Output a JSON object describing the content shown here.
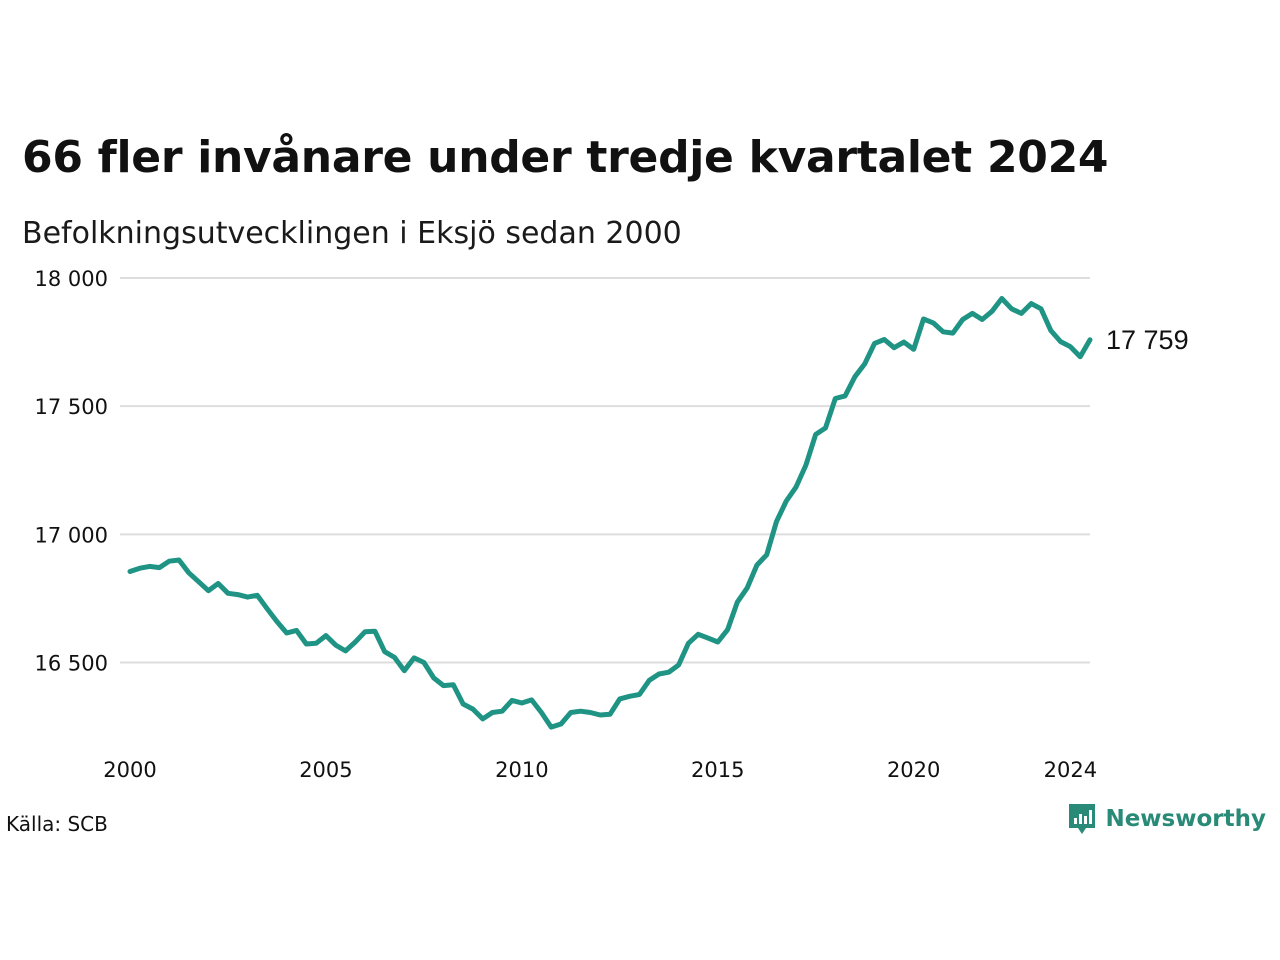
{
  "header": {
    "title": "66 fler invånare under tredje kvartalet 2024",
    "subtitle": "Befolkningsutvecklingen i Eksjö sedan 2000"
  },
  "footer": {
    "source": "Källa: SCB",
    "brand": "Newsworthy",
    "brand_icon": "newsworthy-logo-icon"
  },
  "colors": {
    "line": "#1f9484",
    "grid": "#dddddd",
    "brand": "#2a8a78"
  },
  "chart_data": {
    "type": "line",
    "title": "66 fler invånare under tredje kvartalet 2024",
    "subtitle": "Befolkningsutvecklingen i Eksjö sedan 2000",
    "xlabel": "",
    "ylabel": "",
    "x_ticks": [
      2000,
      2005,
      2010,
      2015,
      2020,
      2024
    ],
    "x_tick_labels": [
      "2000",
      "2005",
      "2010",
      "2015",
      "2020",
      "2024"
    ],
    "y_ticks": [
      16500,
      17000,
      17500,
      18000
    ],
    "y_tick_labels": [
      "16 500",
      "17 000",
      "17 500",
      "18 000"
    ],
    "xlim": [
      2000,
      2024.5
    ],
    "ylim": [
      16260,
      18000
    ],
    "grid": "horizontal",
    "end_label": "17 759",
    "series": [
      {
        "x": [
          2000.0,
          2000.25,
          2000.5,
          2000.75,
          2001.0,
          2001.25,
          2001.5,
          2001.75,
          2002.0,
          2002.25,
          2002.5,
          2002.75,
          2003.0,
          2003.25,
          2003.5,
          2003.75,
          2004.0,
          2004.25,
          2004.5,
          2004.75,
          2005.0,
          2005.25,
          2005.5,
          2005.75,
          2006.0,
          2006.25,
          2006.5,
          2006.75,
          2007.0,
          2007.25,
          2007.5,
          2007.75,
          2008.0,
          2008.25,
          2008.5,
          2008.75,
          2009.0,
          2009.25,
          2009.5,
          2009.75,
          2010.0,
          2010.25,
          2010.5,
          2010.75,
          2011.0,
          2011.25,
          2011.5,
          2011.75,
          2012.0,
          2012.25,
          2012.5,
          2012.75,
          2013.0,
          2013.25,
          2013.5,
          2013.75,
          2014.0,
          2014.25,
          2014.5,
          2014.75,
          2015.0,
          2015.25,
          2015.5,
          2015.75,
          2016.0,
          2016.25,
          2016.5,
          2016.75,
          2017.0,
          2017.25,
          2017.5,
          2017.75,
          2018.0,
          2018.25,
          2018.5,
          2018.75,
          2019.0,
          2019.25,
          2019.5,
          2019.75,
          2020.0,
          2020.25,
          2020.5,
          2020.75,
          2021.0,
          2021.25,
          2021.5,
          2021.75,
          2022.0,
          2022.25,
          2022.5,
          2022.75,
          2023.0,
          2023.25,
          2023.5,
          2023.75,
          2024.0,
          2024.25,
          2024.5
        ],
        "values": [
          16855,
          16868,
          16875,
          16870,
          16895,
          16900,
          16850,
          16815,
          16780,
          16808,
          16770,
          16765,
          16755,
          16762,
          16710,
          16660,
          16615,
          16625,
          16572,
          16575,
          16605,
          16568,
          16545,
          16580,
          16620,
          16622,
          16542,
          16520,
          16468,
          16518,
          16500,
          16440,
          16410,
          16413,
          16338,
          16318,
          16280,
          16305,
          16310,
          16352,
          16342,
          16354,
          16305,
          16248,
          16260,
          16305,
          16310,
          16305,
          16295,
          16298,
          16358,
          16368,
          16375,
          16430,
          16455,
          16462,
          16490,
          16575,
          16610,
          16595,
          16580,
          16628,
          16735,
          16790,
          16880,
          16920,
          17050,
          17130,
          17185,
          17270,
          17390,
          17415,
          17530,
          17540,
          17615,
          17665,
          17745,
          17760,
          17728,
          17750,
          17722,
          17840,
          17825,
          17790,
          17785,
          17838,
          17862,
          17838,
          17870,
          17920,
          17880,
          17862,
          17900,
          17880,
          17795,
          17752,
          17732,
          17693,
          17759
        ]
      }
    ]
  }
}
